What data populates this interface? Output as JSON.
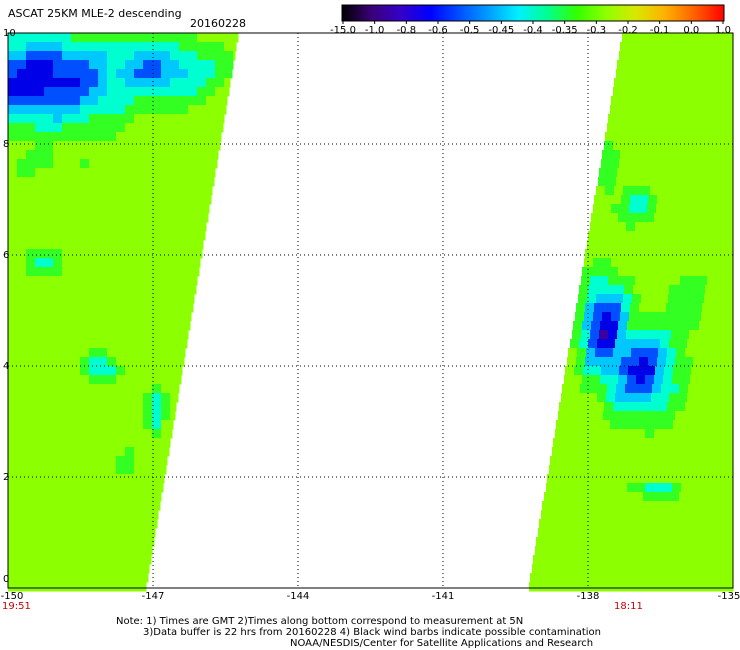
{
  "title": "ASCAT 25KM MLE-2 descending",
  "date": "20160228",
  "colorbar": {
    "labels": [
      "-15.0",
      "-1.0",
      "-0.8",
      "-0.6",
      "-0.5",
      "-0.45",
      "-0.4",
      "-0.35",
      "-0.3",
      "-0.2",
      "-0.1",
      "0.0",
      "1.0"
    ],
    "colors": [
      "#000000",
      "#3a0078",
      "#3500c8",
      "#0000ff",
      "#0050ff",
      "#00a0ff",
      "#00f0ff",
      "#00ff90",
      "#33ff00",
      "#90ff00",
      "#d8e800",
      "#ffb000",
      "#ff6000",
      "#ff0000"
    ]
  },
  "axes": {
    "y_ticks": [
      "10",
      "8",
      "6",
      "4",
      "2",
      "0"
    ],
    "x_ticks": [
      "-150",
      "-147",
      "-144",
      "-141",
      "-138",
      "-135"
    ]
  },
  "times": {
    "left": "19:51",
    "right": "18:11"
  },
  "notes": [
    "Note: 1) Times are GMT 2)Times along bottom correspond to measurement at 5N",
    "3)Data buffer is 22 hrs from 20160228 4) Black wind barbs indicate possible contamination",
    "NOAA/NESDIS/Center for Satellite Applications and Research"
  ],
  "swaths": {
    "left": {
      "base_color": "#8cff00"
    },
    "right": {
      "base_color": "#8cff00"
    }
  }
}
